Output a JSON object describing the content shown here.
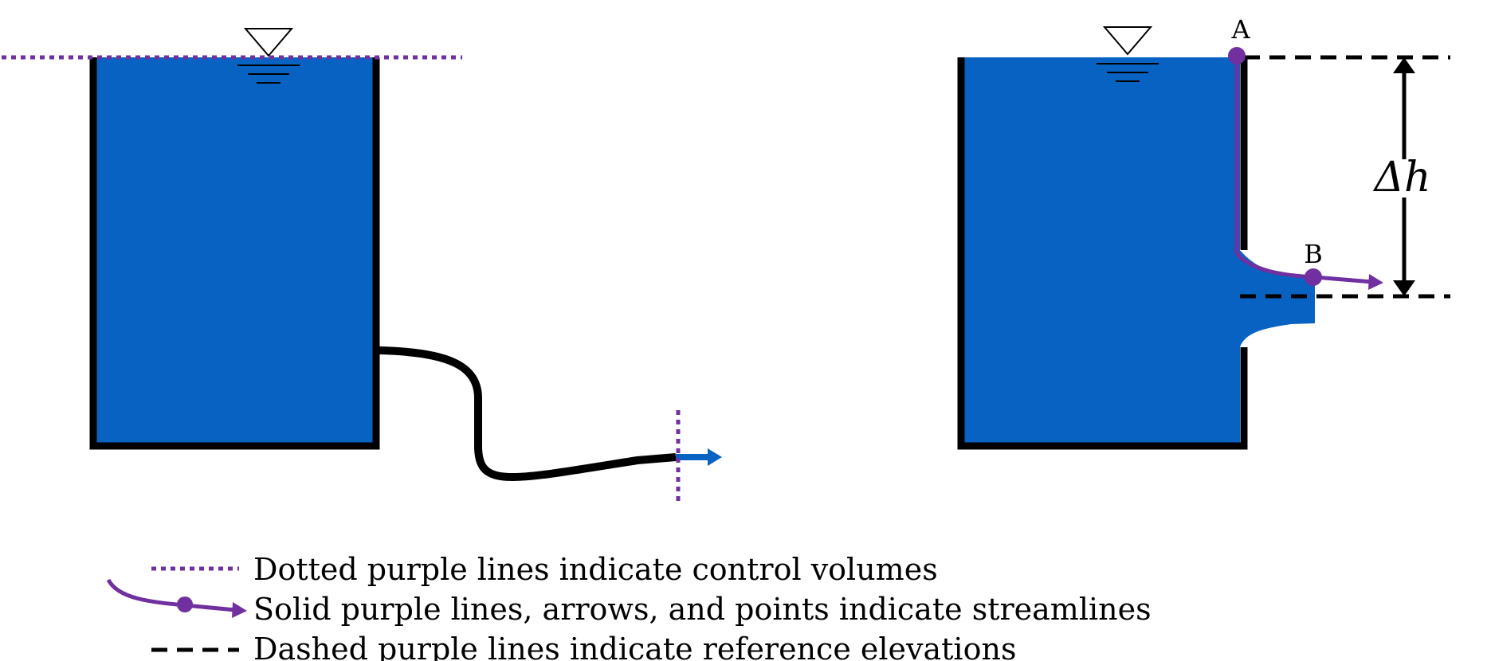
{
  "colors": {
    "water": "#0762c2",
    "wall": "#000000",
    "streamline": "#7030a0",
    "control_volume": "#7030a0",
    "reference": "#000000"
  },
  "points": {
    "a_label": "A",
    "b_label": "B"
  },
  "delta_h_label": "Δh",
  "legend": {
    "control_volume_text": "Dotted purple lines indicate control volumes",
    "streamline_text": "Solid purple lines, arrows, and points indicate streamlines",
    "reference_text": "Dashed purple lines indicate reference elevations"
  },
  "icons": [
    "free-surface-triangle-icon",
    "flow-arrow-icon",
    "dimension-arrow-icon"
  ]
}
